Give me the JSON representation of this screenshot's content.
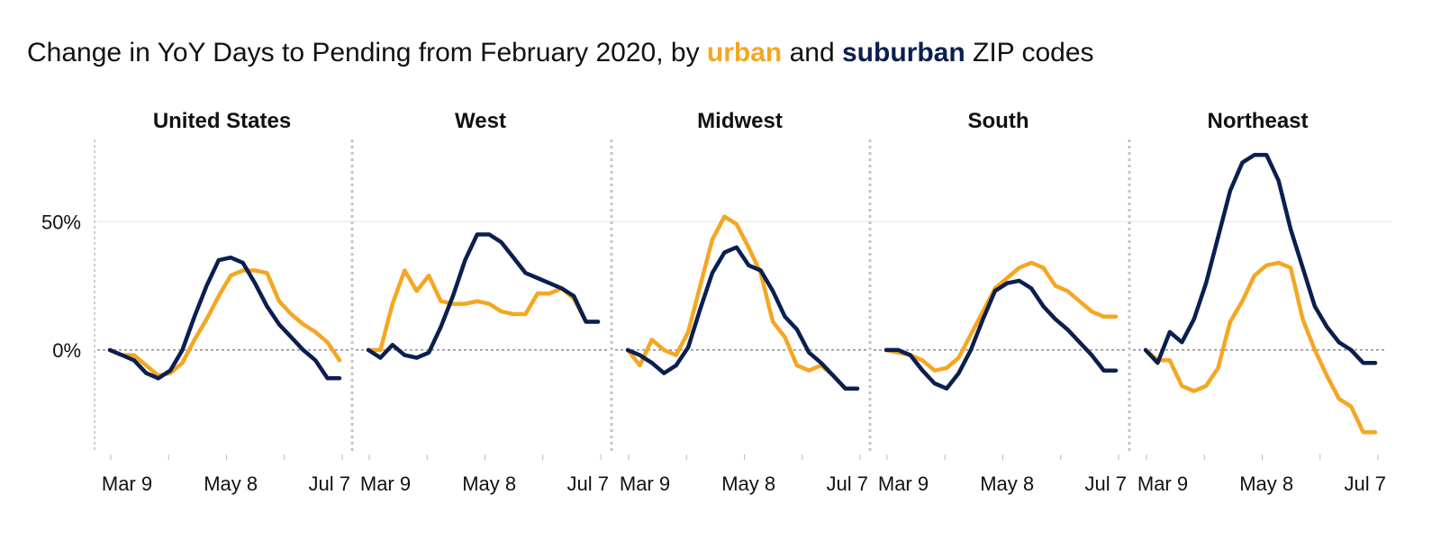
{
  "title": {
    "prefix": "Change in YoY Days to Pending from February 2020, by ",
    "urban": "urban",
    "and": " and ",
    "suburban": "suburban",
    "suffix": " ZIP codes"
  },
  "colors": {
    "urban": "#f5a623",
    "suburban": "#0b1f4f"
  },
  "chart_data": {
    "type": "line",
    "layout": "small-multiples",
    "xlabel": "",
    "ylabel": "",
    "ylim": [
      -40,
      82
    ],
    "y_ticks": [
      {
        "value": 0,
        "label": "0%"
      },
      {
        "value": 50,
        "label": "50%"
      }
    ],
    "x_ticks": [
      {
        "index": 1,
        "label": "Mar 9"
      },
      {
        "index": 10,
        "label": "May 8"
      },
      {
        "index": 19,
        "label": "Jul 7"
      }
    ],
    "x_count": 20,
    "series_names": [
      "urban",
      "suburban"
    ],
    "panels": [
      {
        "title": "United States",
        "urban": [
          0,
          -2,
          -2,
          -6,
          -10,
          -9,
          -5,
          4,
          12,
          21,
          29,
          31,
          31,
          30,
          19,
          14,
          10,
          7,
          3,
          -4
        ],
        "suburban": [
          0,
          -2,
          -4,
          -9,
          -11,
          -8,
          0,
          13,
          25,
          35,
          36,
          34,
          26,
          17,
          10,
          5,
          0,
          -4,
          -11,
          -11
        ]
      },
      {
        "title": "West",
        "urban": [
          0,
          0,
          18,
          31,
          23,
          29,
          19,
          18,
          18,
          19,
          18,
          15,
          14,
          14,
          22,
          22,
          24,
          20,
          11,
          11
        ],
        "suburban": [
          0,
          -3,
          2,
          -2,
          -3,
          -1,
          9,
          21,
          35,
          45,
          45,
          42,
          36,
          30,
          28,
          26,
          24,
          21,
          11,
          11
        ]
      },
      {
        "title": "Midwest",
        "urban": [
          0,
          -6,
          4,
          0,
          -2,
          7,
          25,
          43,
          52,
          49,
          40,
          30,
          11,
          5,
          -6,
          -8,
          -6,
          -10,
          -15,
          -15
        ],
        "suburban": [
          0,
          -2,
          -5,
          -9,
          -6,
          1,
          16,
          30,
          38,
          40,
          33,
          31,
          23,
          13,
          8,
          -1,
          -5,
          -10,
          -15,
          -15
        ]
      },
      {
        "title": "South",
        "urban": [
          0,
          -1,
          -2,
          -4,
          -8,
          -7,
          -3,
          6,
          15,
          24,
          28,
          32,
          34,
          32,
          25,
          23,
          19,
          15,
          13,
          13
        ],
        "suburban": [
          0,
          0,
          -2,
          -8,
          -13,
          -15,
          -9,
          0,
          12,
          23,
          26,
          27,
          24,
          17,
          12,
          8,
          3,
          -2,
          -8,
          -8
        ]
      },
      {
        "title": "Northeast",
        "urban": [
          0,
          -4,
          -4,
          -14,
          -16,
          -14,
          -7,
          11,
          19,
          29,
          33,
          34,
          32,
          12,
          0,
          -10,
          -19,
          -22,
          -32,
          -32
        ],
        "suburban": [
          0,
          -5,
          7,
          3,
          12,
          26,
          44,
          62,
          73,
          76,
          76,
          66,
          47,
          32,
          17,
          9,
          3,
          0,
          -5,
          -5
        ]
      }
    ]
  }
}
